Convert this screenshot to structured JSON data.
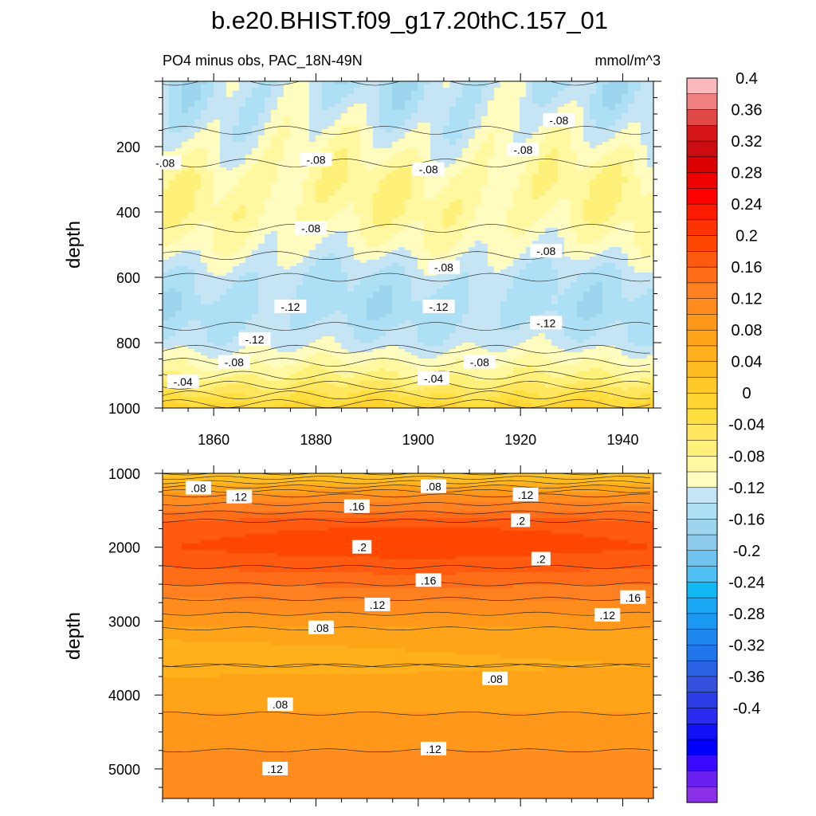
{
  "figure": {
    "title": "b.e20.BHIST.f09_g17.20thC.157_01",
    "subtitle_left": "PO4 minus obs, PAC_18N-49N",
    "subtitle_right": "mmol/m^3"
  },
  "chart_data": [
    {
      "type": "heatmap",
      "name": "upper-panel",
      "title": "PO4 minus obs, PAC_18N-49N",
      "units": "mmol/m^3",
      "xlabel": "",
      "ylabel": "depth",
      "xlim": [
        1850,
        1946
      ],
      "ylim": [
        0,
        1000
      ],
      "y_inverted": true,
      "x_ticks": [
        1860,
        1880,
        1900,
        1920,
        1940
      ],
      "y_ticks": [
        200,
        400,
        600,
        800,
        1000
      ],
      "depth_profile": [
        {
          "depth": 0,
          "value": -0.12
        },
        {
          "depth": 100,
          "value": -0.11
        },
        {
          "depth": 200,
          "value": -0.09
        },
        {
          "depth": 300,
          "value": -0.07
        },
        {
          "depth": 400,
          "value": -0.07
        },
        {
          "depth": 500,
          "value": -0.09
        },
        {
          "depth": 600,
          "value": -0.12
        },
        {
          "depth": 700,
          "value": -0.13
        },
        {
          "depth": 800,
          "value": -0.11
        },
        {
          "depth": 900,
          "value": -0.06
        },
        {
          "depth": 960,
          "value": -0.02
        },
        {
          "depth": 1000,
          "value": 0.01
        }
      ],
      "contour_labels": [
        {
          "text": "-.08",
          "x": 1850.5,
          "y": 250
        },
        {
          "text": "-.08",
          "x": 1880,
          "y": 240
        },
        {
          "text": "-.08",
          "x": 1902,
          "y": 270
        },
        {
          "text": "-.08",
          "x": 1920.5,
          "y": 210
        },
        {
          "text": "-.08",
          "x": 1927.5,
          "y": 120
        },
        {
          "text": "-.08",
          "x": 1879,
          "y": 450
        },
        {
          "text": "-.08",
          "x": 1905,
          "y": 570
        },
        {
          "text": "-.08",
          "x": 1925,
          "y": 520
        },
        {
          "text": "-.12",
          "x": 1875,
          "y": 690
        },
        {
          "text": "-.12",
          "x": 1904,
          "y": 690
        },
        {
          "text": "-.12",
          "x": 1925,
          "y": 740
        },
        {
          "text": "-.12",
          "x": 1868,
          "y": 790
        },
        {
          "text": "-.08",
          "x": 1864,
          "y": 860
        },
        {
          "text": "-.08",
          "x": 1912,
          "y": 860
        },
        {
          "text": "-.04",
          "x": 1854,
          "y": 920
        },
        {
          "text": "-.04",
          "x": 1903,
          "y": 910
        }
      ]
    },
    {
      "type": "heatmap",
      "name": "lower-panel",
      "xlabel": "",
      "ylabel": "depth",
      "xlim": [
        1850,
        1946
      ],
      "ylim": [
        1000,
        5400
      ],
      "y_inverted": true,
      "x_ticks": [
        1860,
        1880,
        1900,
        1920,
        1940
      ],
      "y_ticks": [
        1000,
        2000,
        3000,
        4000,
        5000
      ],
      "depth_profile": [
        {
          "depth": 1000,
          "value": 0.02
        },
        {
          "depth": 1300,
          "value": 0.12
        },
        {
          "depth": 1700,
          "value": 0.19
        },
        {
          "depth": 2000,
          "value": 0.2
        },
        {
          "depth": 2400,
          "value": 0.17
        },
        {
          "depth": 2800,
          "value": 0.13
        },
        {
          "depth": 3200,
          "value": 0.09
        },
        {
          "depth": 3600,
          "value": 0.08
        },
        {
          "depth": 4000,
          "value": 0.09
        },
        {
          "depth": 4500,
          "value": 0.11
        },
        {
          "depth": 5000,
          "value": 0.13
        },
        {
          "depth": 5400,
          "value": 0.14
        }
      ],
      "contour_labels": [
        {
          "text": ".08",
          "x": 1857,
          "y": 1200
        },
        {
          "text": ".12",
          "x": 1865,
          "y": 1320
        },
        {
          "text": ".08",
          "x": 1903,
          "y": 1180
        },
        {
          "text": ".12",
          "x": 1921,
          "y": 1290
        },
        {
          "text": ".16",
          "x": 1888,
          "y": 1450
        },
        {
          "text": ".2",
          "x": 1920,
          "y": 1640
        },
        {
          "text": ".2",
          "x": 1889,
          "y": 2000
        },
        {
          "text": ".2",
          "x": 1924,
          "y": 2160
        },
        {
          "text": ".16",
          "x": 1902,
          "y": 2450
        },
        {
          "text": ".16",
          "x": 1942,
          "y": 2680
        },
        {
          "text": ".12",
          "x": 1892,
          "y": 2780
        },
        {
          "text": ".12",
          "x": 1937,
          "y": 2920
        },
        {
          "text": ".08",
          "x": 1881,
          "y": 3090
        },
        {
          "text": ".08",
          "x": 1915,
          "y": 3780
        },
        {
          "text": ".08",
          "x": 1873,
          "y": 4130
        },
        {
          "text": ".12",
          "x": 1903,
          "y": 4730
        },
        {
          "text": ".12",
          "x": 1872,
          "y": 5000
        }
      ]
    }
  ],
  "colorbar": {
    "label_values": [
      "0.4",
      "0.36",
      "0.32",
      "0.28",
      "0.24",
      "0.2",
      "0.16",
      "0.12",
      "0.08",
      "0.04",
      "0",
      "-0.04",
      "-0.08",
      "-0.12",
      "-0.16",
      "-0.2",
      "-0.24",
      "-0.28",
      "-0.32",
      "-0.36",
      "-0.4"
    ],
    "levels_min": -0.42,
    "levels_max": 0.42,
    "level_step": 0.02,
    "colors_top_to_bottom": [
      "#f9b9bd",
      "#f08080",
      "#e04848",
      "#d51518",
      "#cb0c10",
      "#dd0000",
      "#ee0000",
      "#ff0000",
      "#ff1a00",
      "#ff3300",
      "#ff4700",
      "#ff5a10",
      "#ff6d18",
      "#ff8020",
      "#ff8c1c",
      "#ff981a",
      "#ffa418",
      "#ffb01a",
      "#ffbc20",
      "#ffc826",
      "#ffd330",
      "#ffde40",
      "#ffe65e",
      "#fff07a",
      "#fff8a0",
      "#fffcc0",
      "#c6e5f4",
      "#ade0f5",
      "#9dd4ee",
      "#8dc9ea",
      "#6fc3ee",
      "#4fc0f3",
      "#12b8f5",
      "#1aa8f5",
      "#1b98f2",
      "#1d86ef",
      "#2074ec",
      "#2a62e6",
      "#3450dc",
      "#2a3de6",
      "#2a2af0",
      "#1010f5",
      "#0000ff",
      "#3a0aff",
      "#6a20f0",
      "#8a30e8"
    ]
  }
}
